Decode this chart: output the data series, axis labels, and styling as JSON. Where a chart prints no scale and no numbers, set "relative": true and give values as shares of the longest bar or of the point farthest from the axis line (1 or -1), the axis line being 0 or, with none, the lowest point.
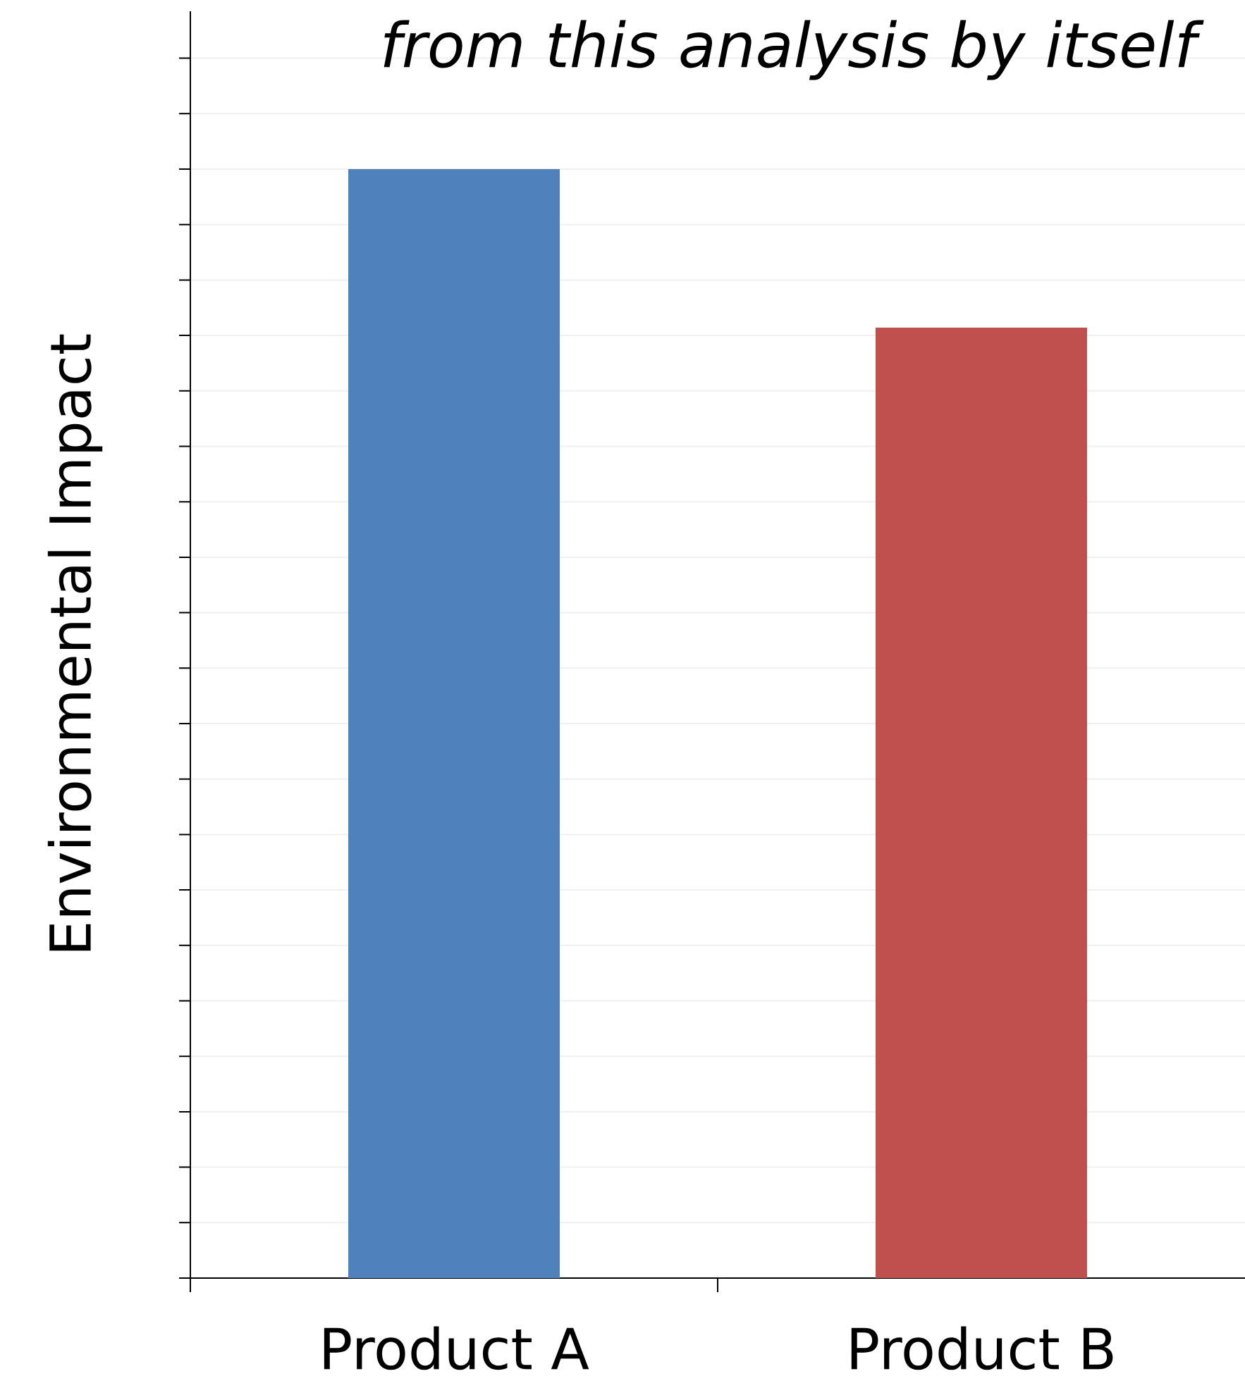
{
  "chart_data": {
    "type": "bar",
    "relative": true,
    "ylabel": "Environmental Impact",
    "categories": [
      "Product A",
      "Product B"
    ],
    "series": [
      {
        "colors": [
          "#4f81bd",
          "#c0504d"
        ],
        "values": [
          1,
          0.857
        ]
      }
    ],
    "grid": "y",
    "annotations": [
      "*from this analysis by itself*"
    ]
  }
}
